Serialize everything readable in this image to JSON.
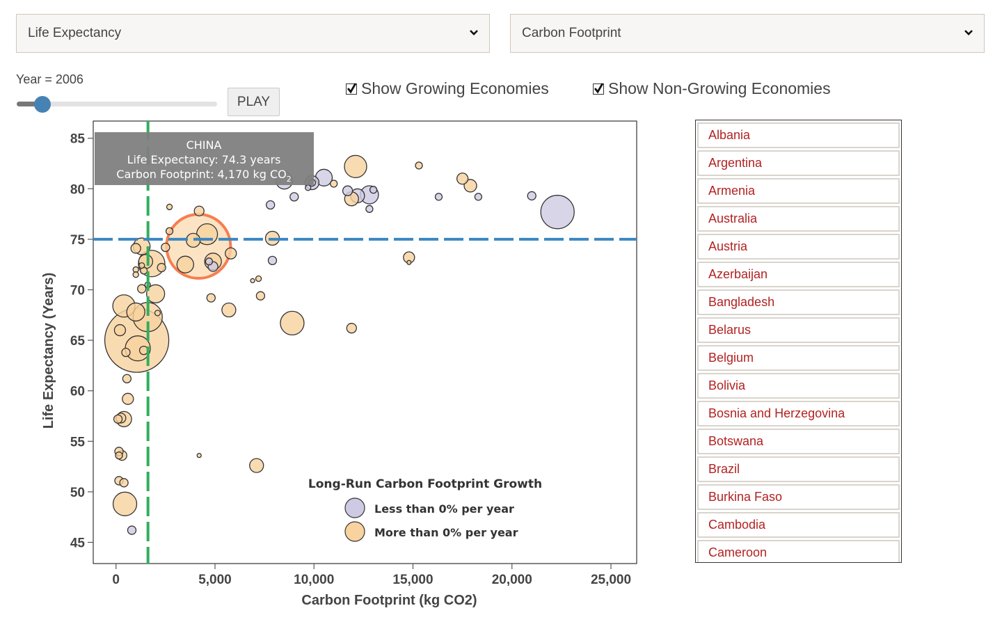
{
  "controls": {
    "y_select": {
      "selected": "Life Expectancy",
      "icon": "chevron-down-icon"
    },
    "x_select": {
      "selected": "Carbon Footprint",
      "icon": "chevron-down-icon"
    },
    "year_label": "Year = 2006",
    "year_slider": {
      "value": 2006,
      "fraction": 0.13
    },
    "play_label": "PLAY",
    "show_growing": {
      "label": "Show Growing Economies",
      "checked": true
    },
    "show_nongrowing": {
      "label": "Show Non-Growing Economies",
      "checked": true
    }
  },
  "country_list": [
    "Albania",
    "Argentina",
    "Armenia",
    "Australia",
    "Austria",
    "Azerbaijan",
    "Bangladesh",
    "Belarus",
    "Belgium",
    "Bolivia",
    "Bosnia and Herzegovina",
    "Botswana",
    "Brazil",
    "Burkina Faso",
    "Cambodia",
    "Cameroon"
  ],
  "colors": {
    "growing": "#f8d29f",
    "nongrowing": "#cfcae3",
    "highlight_stroke": "#f77e4f",
    "vline": "#2fae5c",
    "hline": "#3a87c2",
    "list_text": "#b22222",
    "tooltip_bg": "#808080"
  },
  "chart_data": {
    "type": "scatter",
    "xlabel": "Carbon Footprint (kg CO2)",
    "ylabel": "Life Expectancy (Years)",
    "xlim": [
      -1150,
      26300
    ],
    "ylim": [
      42.9,
      86.7
    ],
    "xticks": [
      0,
      5000,
      10000,
      15000,
      20000,
      25000
    ],
    "xtick_labels": [
      "0",
      "5,000",
      "10,000",
      "15,000",
      "20,000",
      "25,000"
    ],
    "yticks": [
      45,
      50,
      55,
      60,
      65,
      70,
      75,
      80,
      85
    ],
    "ytick_labels": [
      "45",
      "50",
      "55",
      "60",
      "65",
      "70",
      "75",
      "80",
      "85"
    ],
    "reference_lines": {
      "x_mean": 1615,
      "y_mean": 75.0
    },
    "tooltip": {
      "title": "CHINA",
      "line1": "Life Expectancy: 74.3 years",
      "line2_prefix": "Carbon Footprint: 4,170 kg CO",
      "line2_sub": "2"
    },
    "highlighted": {
      "name": "China",
      "x": 4170,
      "y": 74.3,
      "size": 46,
      "group": "growing"
    },
    "legend": {
      "title": "Long-Run Carbon Footprint Growth",
      "items": [
        {
          "label": "Less than 0% per year",
          "group": "nongrowing"
        },
        {
          "label": "More than 0% per year",
          "group": "growing"
        }
      ],
      "position": "bottom-center"
    },
    "grid": false,
    "points": [
      {
        "x": 22300,
        "y": 77.7,
        "size": 24,
        "group": "nongrowing"
      },
      {
        "x": 21000,
        "y": 79.3,
        "size": 6,
        "group": "nongrowing"
      },
      {
        "x": 18300,
        "y": 79.2,
        "size": 5,
        "group": "nongrowing"
      },
      {
        "x": 17900,
        "y": 80.3,
        "size": 9,
        "group": "growing"
      },
      {
        "x": 17500,
        "y": 81.0,
        "size": 8,
        "group": "growing"
      },
      {
        "x": 16300,
        "y": 79.2,
        "size": 5,
        "group": "nongrowing"
      },
      {
        "x": 15300,
        "y": 82.3,
        "size": 5,
        "group": "growing"
      },
      {
        "x": 14800,
        "y": 73.2,
        "size": 8,
        "group": "growing"
      },
      {
        "x": 14800,
        "y": 72.7,
        "size": 3,
        "group": "growing"
      },
      {
        "x": 12100,
        "y": 82.2,
        "size": 16,
        "group": "growing"
      },
      {
        "x": 12800,
        "y": 79.4,
        "size": 13,
        "group": "nongrowing"
      },
      {
        "x": 12200,
        "y": 79.3,
        "size": 10,
        "group": "nongrowing"
      },
      {
        "x": 11900,
        "y": 79.0,
        "size": 10,
        "group": "growing"
      },
      {
        "x": 11700,
        "y": 79.8,
        "size": 7,
        "group": "nongrowing"
      },
      {
        "x": 13000,
        "y": 79.9,
        "size": 5,
        "group": "nongrowing"
      },
      {
        "x": 12800,
        "y": 78.0,
        "size": 5,
        "group": "nongrowing"
      },
      {
        "x": 10500,
        "y": 81.1,
        "size": 12,
        "group": "nongrowing"
      },
      {
        "x": 11000,
        "y": 80.5,
        "size": 5,
        "group": "growing"
      },
      {
        "x": 9900,
        "y": 80.6,
        "size": 10,
        "group": "nongrowing"
      },
      {
        "x": 9900,
        "y": 80.6,
        "size": 5,
        "group": "nongrowing"
      },
      {
        "x": 9700,
        "y": 80.1,
        "size": 4,
        "group": "nongrowing"
      },
      {
        "x": 8500,
        "y": 80.8,
        "size": 12,
        "group": "nongrowing"
      },
      {
        "x": 9000,
        "y": 79.2,
        "size": 6,
        "group": "nongrowing"
      },
      {
        "x": 7800,
        "y": 78.4,
        "size": 6,
        "group": "nongrowing"
      },
      {
        "x": 7900,
        "y": 75.1,
        "size": 10,
        "group": "growing"
      },
      {
        "x": 7900,
        "y": 72.9,
        "size": 6,
        "group": "nongrowing"
      },
      {
        "x": 7200,
        "y": 71.1,
        "size": 4,
        "group": "growing"
      },
      {
        "x": 6900,
        "y": 70.9,
        "size": 3,
        "group": "growing"
      },
      {
        "x": 7300,
        "y": 69.4,
        "size": 6,
        "group": "growing"
      },
      {
        "x": 8900,
        "y": 66.7,
        "size": 17,
        "group": "growing"
      },
      {
        "x": 11900,
        "y": 66.2,
        "size": 7,
        "group": "growing"
      },
      {
        "x": 7100,
        "y": 52.6,
        "size": 10,
        "group": "growing"
      },
      {
        "x": 4200,
        "y": 53.6,
        "size": 3,
        "group": "growing"
      },
      {
        "x": 5700,
        "y": 68.0,
        "size": 10,
        "group": "growing"
      },
      {
        "x": 4800,
        "y": 69.2,
        "size": 6,
        "group": "growing"
      },
      {
        "x": 5800,
        "y": 73.6,
        "size": 8,
        "group": "growing"
      },
      {
        "x": 4600,
        "y": 75.5,
        "size": 15,
        "group": "growing"
      },
      {
        "x": 3900,
        "y": 74.9,
        "size": 10,
        "group": "growing"
      },
      {
        "x": 4200,
        "y": 77.8,
        "size": 7,
        "group": "growing"
      },
      {
        "x": 3500,
        "y": 72.5,
        "size": 12,
        "group": "growing"
      },
      {
        "x": 4900,
        "y": 72.8,
        "size": 12,
        "group": "growing"
      },
      {
        "x": 4700,
        "y": 72.8,
        "size": 5,
        "group": "nongrowing"
      },
      {
        "x": 4900,
        "y": 72.3,
        "size": 7,
        "group": "nongrowing"
      },
      {
        "x": 2700,
        "y": 78.2,
        "size": 4,
        "group": "growing"
      },
      {
        "x": 2700,
        "y": 75.8,
        "size": 5,
        "group": "growing"
      },
      {
        "x": 2500,
        "y": 74.2,
        "size": 6,
        "group": "growing"
      },
      {
        "x": 1300,
        "y": 74.3,
        "size": 12,
        "group": "growing"
      },
      {
        "x": 1000,
        "y": 74.1,
        "size": 7,
        "group": "growing"
      },
      {
        "x": 1800,
        "y": 72.6,
        "size": 19,
        "group": "growing"
      },
      {
        "x": 1500,
        "y": 72.8,
        "size": 10,
        "group": "growing"
      },
      {
        "x": 2300,
        "y": 72.2,
        "size": 6,
        "group": "growing"
      },
      {
        "x": 1300,
        "y": 72.4,
        "size": 4,
        "group": "growing"
      },
      {
        "x": 1000,
        "y": 72.0,
        "size": 4,
        "group": "growing"
      },
      {
        "x": 1400,
        "y": 71.9,
        "size": 5,
        "group": "growing"
      },
      {
        "x": 1000,
        "y": 71.5,
        "size": 4,
        "group": "growing"
      },
      {
        "x": 2000,
        "y": 69.6,
        "size": 13,
        "group": "growing"
      },
      {
        "x": 1300,
        "y": 70.1,
        "size": 6,
        "group": "growing"
      },
      {
        "x": 1600,
        "y": 70.5,
        "size": 4,
        "group": "growing"
      },
      {
        "x": 400,
        "y": 68.4,
        "size": 16,
        "group": "growing"
      },
      {
        "x": 1000,
        "y": 67.8,
        "size": 13,
        "group": "growing"
      },
      {
        "x": 1600,
        "y": 67.3,
        "size": 21,
        "group": "growing"
      },
      {
        "x": 2100,
        "y": 67.7,
        "size": 4,
        "group": "growing"
      },
      {
        "x": 1050,
        "y": 65.0,
        "size": 46,
        "group": "growing"
      },
      {
        "x": 200,
        "y": 66.0,
        "size": 8,
        "group": "growing"
      },
      {
        "x": 1100,
        "y": 64.2,
        "size": 18,
        "group": "growing"
      },
      {
        "x": 500,
        "y": 63.8,
        "size": 6,
        "group": "growing"
      },
      {
        "x": 1400,
        "y": 64.0,
        "size": 6,
        "group": "growing"
      },
      {
        "x": 550,
        "y": 61.2,
        "size": 6,
        "group": "growing"
      },
      {
        "x": 600,
        "y": 59.2,
        "size": 8,
        "group": "growing"
      },
      {
        "x": 400,
        "y": 57.2,
        "size": 11,
        "group": "growing"
      },
      {
        "x": 100,
        "y": 57.2,
        "size": 6,
        "group": "growing"
      },
      {
        "x": 250,
        "y": 57.3,
        "size": 7,
        "group": "growing"
      },
      {
        "x": 150,
        "y": 54.0,
        "size": 6,
        "group": "growing"
      },
      {
        "x": 300,
        "y": 53.6,
        "size": 7,
        "group": "growing"
      },
      {
        "x": 150,
        "y": 53.6,
        "size": 5,
        "group": "growing"
      },
      {
        "x": 150,
        "y": 51.1,
        "size": 6,
        "group": "growing"
      },
      {
        "x": 400,
        "y": 50.9,
        "size": 6,
        "group": "growing"
      },
      {
        "x": 450,
        "y": 48.8,
        "size": 17,
        "group": "growing"
      },
      {
        "x": 800,
        "y": 46.2,
        "size": 6,
        "group": "nongrowing"
      }
    ]
  }
}
